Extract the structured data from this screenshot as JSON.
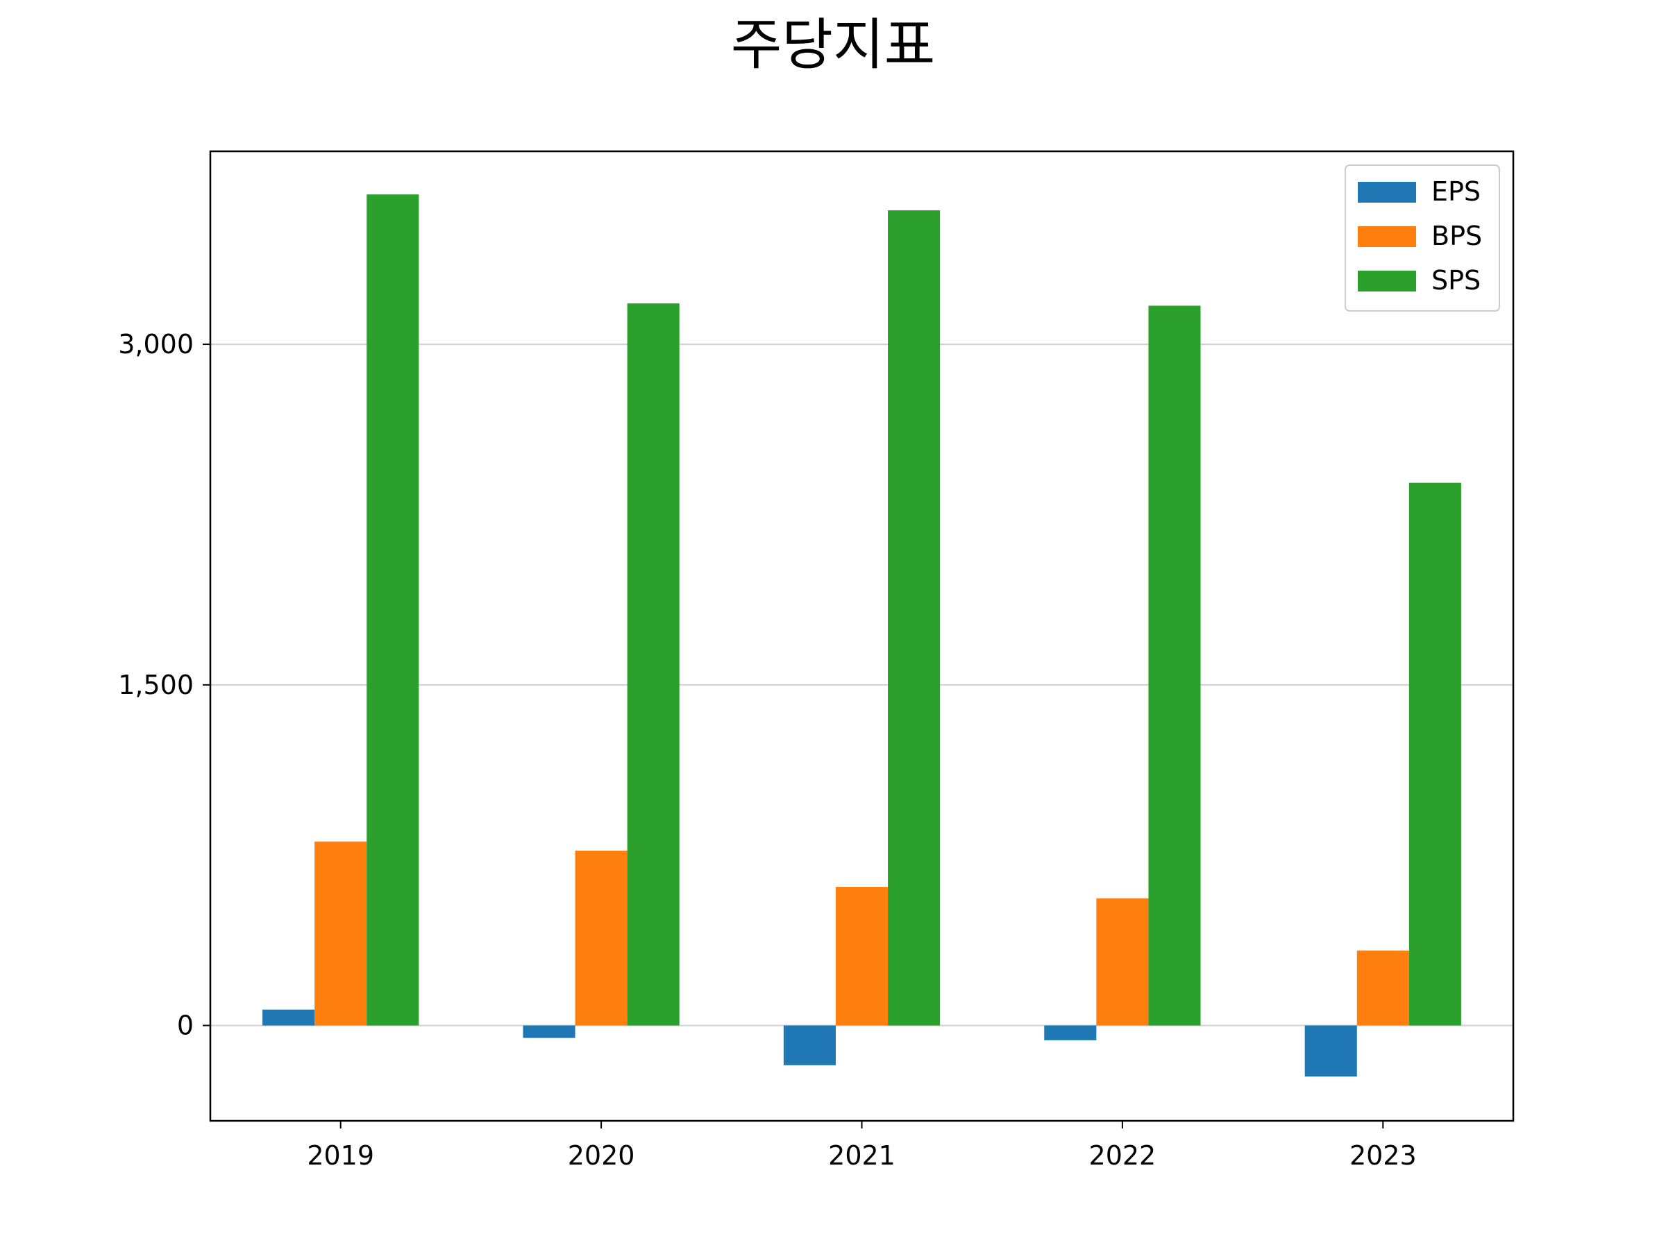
{
  "chart_data": {
    "type": "bar",
    "title": "주당지표",
    "xlabel": "",
    "ylabel": "",
    "categories": [
      "2019",
      "2020",
      "2021",
      "2022",
      "2023"
    ],
    "series": [
      {
        "name": "EPS",
        "color": "#1f77b4",
        "values": [
          70,
          -55,
          -175,
          -65,
          -225
        ]
      },
      {
        "name": "BPS",
        "color": "#ff7f0e",
        "values": [
          810,
          770,
          610,
          560,
          330
        ]
      },
      {
        "name": "SPS",
        "color": "#2ca02c",
        "values": [
          3660,
          3180,
          3590,
          3170,
          2390
        ]
      }
    ],
    "ylim": [
      -420,
      3850
    ],
    "yticks": [
      0,
      1500,
      3000
    ],
    "ytick_labels": [
      "0",
      "1,500",
      "3,000"
    ],
    "grid": "y",
    "legend": "top-right"
  }
}
